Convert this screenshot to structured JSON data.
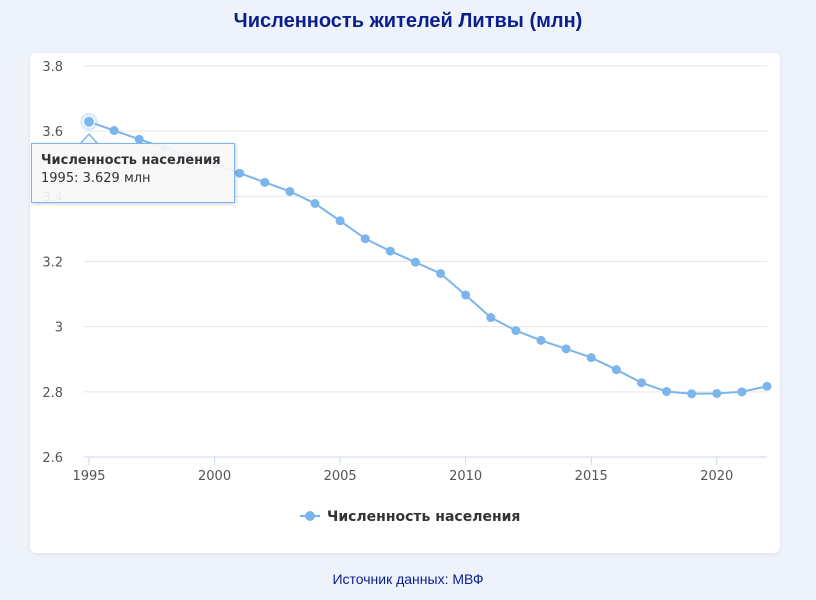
{
  "title": "Численность жителей Литвы (млн)",
  "source": "Источник данных: МВФ",
  "colors": {
    "series": "#7cb5ec",
    "title": "#0a1e8c",
    "grid": "#e6e6e6"
  },
  "tooltip": {
    "title": "Численность населения",
    "text": "1995: 3.629 млн"
  },
  "chart_data": {
    "type": "line",
    "title": "Численность жителей Литвы (млн)",
    "xlabel": "",
    "ylabel": "",
    "xlim": [
      1995,
      2022
    ],
    "ylim": [
      2.6,
      3.8
    ],
    "x_ticks": [
      1995,
      2000,
      2005,
      2010,
      2015,
      2020
    ],
    "y_ticks": [
      2.6,
      2.8,
      3,
      3.2,
      3.4,
      3.6,
      3.8
    ],
    "y_tick_labels": [
      "2.6",
      "2.8",
      "3",
      "3.2",
      "3.4",
      "3.6",
      "3.8"
    ],
    "grid": true,
    "legend_position": "bottom-center",
    "x": [
      1995,
      1996,
      1997,
      1998,
      1999,
      2000,
      2001,
      2002,
      2003,
      2004,
      2005,
      2006,
      2007,
      2008,
      2009,
      2010,
      2011,
      2012,
      2013,
      2014,
      2015,
      2016,
      2017,
      2018,
      2019,
      2020,
      2021,
      2022
    ],
    "series": [
      {
        "name": "Численность населения",
        "values": [
          3.629,
          3.602,
          3.575,
          3.549,
          3.524,
          3.5,
          3.471,
          3.443,
          3.415,
          3.378,
          3.325,
          3.27,
          3.232,
          3.198,
          3.163,
          3.097,
          3.028,
          2.988,
          2.958,
          2.932,
          2.905,
          2.868,
          2.828,
          2.801,
          2.794,
          2.795,
          2.8,
          2.817
        ]
      }
    ]
  }
}
